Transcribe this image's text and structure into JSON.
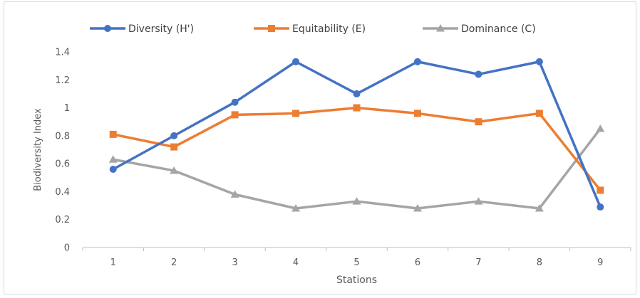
{
  "chart_data": {
    "type": "line",
    "title": "",
    "xlabel": "Stations",
    "ylabel": "Biodiversity Index",
    "categories": [
      "1",
      "2",
      "3",
      "4",
      "5",
      "6",
      "7",
      "8",
      "9"
    ],
    "ylim": [
      0,
      1.4
    ],
    "yticks": [
      "0",
      "0.2",
      "0.4",
      "0.6",
      "0.8",
      "1",
      "1.2",
      "1.4"
    ],
    "grid": false,
    "legend_position": "top",
    "series": [
      {
        "name": "Diversity (H')",
        "color": "#4472C4",
        "marker": "circle",
        "values": [
          0.56,
          0.8,
          1.04,
          1.33,
          1.1,
          1.33,
          1.24,
          1.33,
          0.29
        ]
      },
      {
        "name": "Equitability (E)",
        "color": "#ED7D31",
        "marker": "square",
        "values": [
          0.81,
          0.72,
          0.95,
          0.96,
          1.0,
          0.96,
          0.9,
          0.96,
          0.41
        ]
      },
      {
        "name": "Dominance (C)",
        "color": "#A5A5A5",
        "marker": "triangle",
        "values": [
          0.63,
          0.55,
          0.38,
          0.28,
          0.33,
          0.28,
          0.33,
          0.28,
          0.85
        ]
      }
    ]
  }
}
